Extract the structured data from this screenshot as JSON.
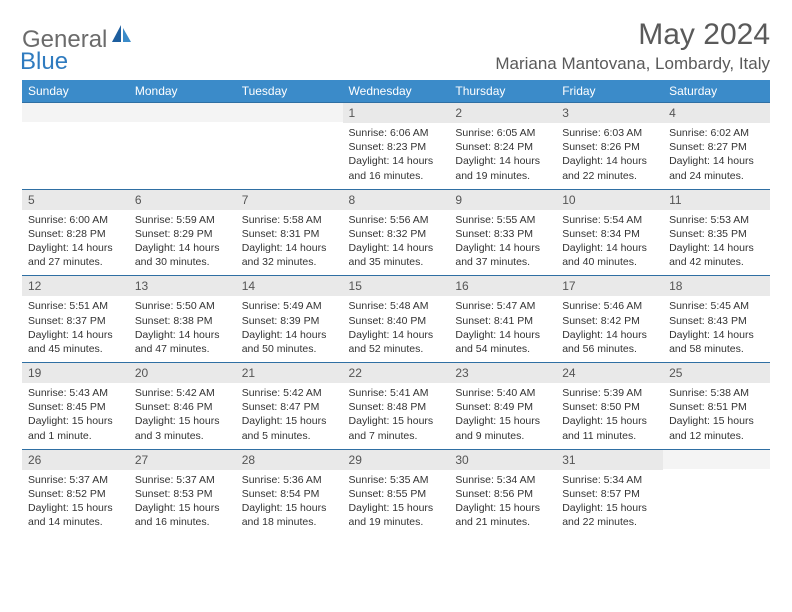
{
  "logo": {
    "textGray": "General",
    "textBlue": "Blue"
  },
  "header": {
    "month": "May 2024",
    "location": "Mariana Mantovana, Lombardy, Italy"
  },
  "colors": {
    "headerBar": "#3b8bc9",
    "dayNumBg": "#e9e9e9",
    "ruleLine": "#2f6fa3",
    "logoGray": "#6b6b6b",
    "logoBlue": "#2f7bbf"
  },
  "dayNames": [
    "Sunday",
    "Monday",
    "Tuesday",
    "Wednesday",
    "Thursday",
    "Friday",
    "Saturday"
  ],
  "weeks": [
    [
      null,
      null,
      null,
      {
        "n": "1",
        "sr": "Sunrise: 6:06 AM",
        "ss": "Sunset: 8:23 PM",
        "dl": "Daylight: 14 hours and 16 minutes."
      },
      {
        "n": "2",
        "sr": "Sunrise: 6:05 AM",
        "ss": "Sunset: 8:24 PM",
        "dl": "Daylight: 14 hours and 19 minutes."
      },
      {
        "n": "3",
        "sr": "Sunrise: 6:03 AM",
        "ss": "Sunset: 8:26 PM",
        "dl": "Daylight: 14 hours and 22 minutes."
      },
      {
        "n": "4",
        "sr": "Sunrise: 6:02 AM",
        "ss": "Sunset: 8:27 PM",
        "dl": "Daylight: 14 hours and 24 minutes."
      }
    ],
    [
      {
        "n": "5",
        "sr": "Sunrise: 6:00 AM",
        "ss": "Sunset: 8:28 PM",
        "dl": "Daylight: 14 hours and 27 minutes."
      },
      {
        "n": "6",
        "sr": "Sunrise: 5:59 AM",
        "ss": "Sunset: 8:29 PM",
        "dl": "Daylight: 14 hours and 30 minutes."
      },
      {
        "n": "7",
        "sr": "Sunrise: 5:58 AM",
        "ss": "Sunset: 8:31 PM",
        "dl": "Daylight: 14 hours and 32 minutes."
      },
      {
        "n": "8",
        "sr": "Sunrise: 5:56 AM",
        "ss": "Sunset: 8:32 PM",
        "dl": "Daylight: 14 hours and 35 minutes."
      },
      {
        "n": "9",
        "sr": "Sunrise: 5:55 AM",
        "ss": "Sunset: 8:33 PM",
        "dl": "Daylight: 14 hours and 37 minutes."
      },
      {
        "n": "10",
        "sr": "Sunrise: 5:54 AM",
        "ss": "Sunset: 8:34 PM",
        "dl": "Daylight: 14 hours and 40 minutes."
      },
      {
        "n": "11",
        "sr": "Sunrise: 5:53 AM",
        "ss": "Sunset: 8:35 PM",
        "dl": "Daylight: 14 hours and 42 minutes."
      }
    ],
    [
      {
        "n": "12",
        "sr": "Sunrise: 5:51 AM",
        "ss": "Sunset: 8:37 PM",
        "dl": "Daylight: 14 hours and 45 minutes."
      },
      {
        "n": "13",
        "sr": "Sunrise: 5:50 AM",
        "ss": "Sunset: 8:38 PM",
        "dl": "Daylight: 14 hours and 47 minutes."
      },
      {
        "n": "14",
        "sr": "Sunrise: 5:49 AM",
        "ss": "Sunset: 8:39 PM",
        "dl": "Daylight: 14 hours and 50 minutes."
      },
      {
        "n": "15",
        "sr": "Sunrise: 5:48 AM",
        "ss": "Sunset: 8:40 PM",
        "dl": "Daylight: 14 hours and 52 minutes."
      },
      {
        "n": "16",
        "sr": "Sunrise: 5:47 AM",
        "ss": "Sunset: 8:41 PM",
        "dl": "Daylight: 14 hours and 54 minutes."
      },
      {
        "n": "17",
        "sr": "Sunrise: 5:46 AM",
        "ss": "Sunset: 8:42 PM",
        "dl": "Daylight: 14 hours and 56 minutes."
      },
      {
        "n": "18",
        "sr": "Sunrise: 5:45 AM",
        "ss": "Sunset: 8:43 PM",
        "dl": "Daylight: 14 hours and 58 minutes."
      }
    ],
    [
      {
        "n": "19",
        "sr": "Sunrise: 5:43 AM",
        "ss": "Sunset: 8:45 PM",
        "dl": "Daylight: 15 hours and 1 minute."
      },
      {
        "n": "20",
        "sr": "Sunrise: 5:42 AM",
        "ss": "Sunset: 8:46 PM",
        "dl": "Daylight: 15 hours and 3 minutes."
      },
      {
        "n": "21",
        "sr": "Sunrise: 5:42 AM",
        "ss": "Sunset: 8:47 PM",
        "dl": "Daylight: 15 hours and 5 minutes."
      },
      {
        "n": "22",
        "sr": "Sunrise: 5:41 AM",
        "ss": "Sunset: 8:48 PM",
        "dl": "Daylight: 15 hours and 7 minutes."
      },
      {
        "n": "23",
        "sr": "Sunrise: 5:40 AM",
        "ss": "Sunset: 8:49 PM",
        "dl": "Daylight: 15 hours and 9 minutes."
      },
      {
        "n": "24",
        "sr": "Sunrise: 5:39 AM",
        "ss": "Sunset: 8:50 PM",
        "dl": "Daylight: 15 hours and 11 minutes."
      },
      {
        "n": "25",
        "sr": "Sunrise: 5:38 AM",
        "ss": "Sunset: 8:51 PM",
        "dl": "Daylight: 15 hours and 12 minutes."
      }
    ],
    [
      {
        "n": "26",
        "sr": "Sunrise: 5:37 AM",
        "ss": "Sunset: 8:52 PM",
        "dl": "Daylight: 15 hours and 14 minutes."
      },
      {
        "n": "27",
        "sr": "Sunrise: 5:37 AM",
        "ss": "Sunset: 8:53 PM",
        "dl": "Daylight: 15 hours and 16 minutes."
      },
      {
        "n": "28",
        "sr": "Sunrise: 5:36 AM",
        "ss": "Sunset: 8:54 PM",
        "dl": "Daylight: 15 hours and 18 minutes."
      },
      {
        "n": "29",
        "sr": "Sunrise: 5:35 AM",
        "ss": "Sunset: 8:55 PM",
        "dl": "Daylight: 15 hours and 19 minutes."
      },
      {
        "n": "30",
        "sr": "Sunrise: 5:34 AM",
        "ss": "Sunset: 8:56 PM",
        "dl": "Daylight: 15 hours and 21 minutes."
      },
      {
        "n": "31",
        "sr": "Sunrise: 5:34 AM",
        "ss": "Sunset: 8:57 PM",
        "dl": "Daylight: 15 hours and 22 minutes."
      },
      null
    ]
  ]
}
